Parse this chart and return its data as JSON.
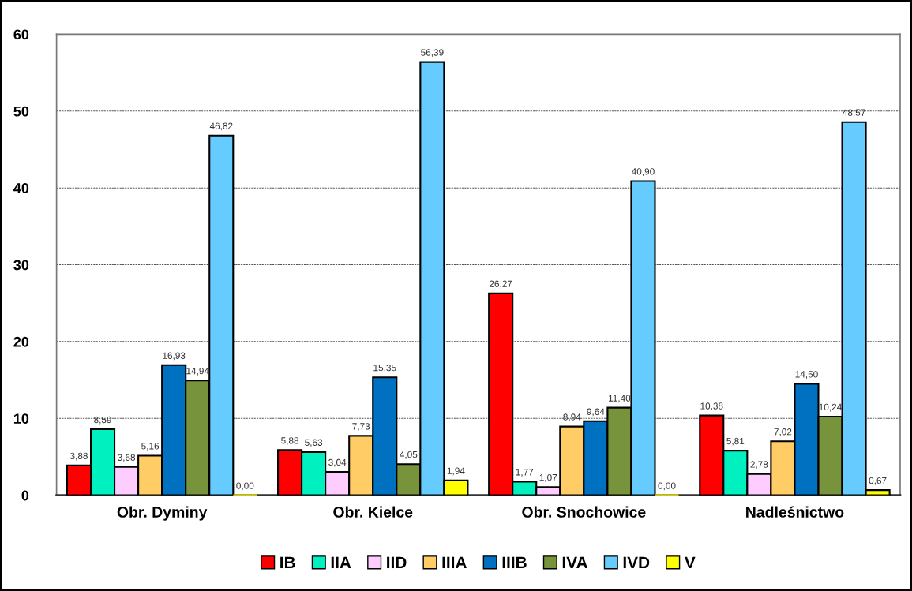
{
  "chart_data": {
    "type": "bar",
    "categories": [
      "Obr. Dyminy",
      "Obr. Kielce",
      "Obr. Snochowice",
      "Nadleśnictwo"
    ],
    "series": [
      {
        "name": "IB",
        "color": "#ff0000",
        "values": [
          3.88,
          5.88,
          26.27,
          10.38
        ],
        "value_labels": [
          "3,88",
          "5,88",
          "26,27",
          "10,38"
        ]
      },
      {
        "name": "IIA",
        "color": "#00f0c0",
        "values": [
          8.59,
          5.63,
          1.77,
          5.81
        ],
        "value_labels": [
          "8,59",
          "5,63",
          "1,77",
          "5,81"
        ]
      },
      {
        "name": "IID",
        "color": "#ffccff",
        "values": [
          3.68,
          3.04,
          1.07,
          2.78
        ],
        "value_labels": [
          "3,68",
          "3,04",
          "1,07",
          "2,78"
        ]
      },
      {
        "name": "IIIA",
        "color": "#ffcc66",
        "values": [
          5.16,
          7.73,
          8.94,
          7.02
        ],
        "value_labels": [
          "5,16",
          "7,73",
          "8,94",
          "7,02"
        ]
      },
      {
        "name": "IIIB",
        "color": "#0070c0",
        "values": [
          16.93,
          15.35,
          9.64,
          14.5
        ],
        "value_labels": [
          "16,93",
          "15,35",
          "9,64",
          "14,50"
        ]
      },
      {
        "name": "IVA",
        "color": "#77933c",
        "values": [
          14.94,
          4.05,
          11.4,
          10.24
        ],
        "value_labels": [
          "14,94",
          "4,05",
          "11,40",
          "10,24"
        ]
      },
      {
        "name": "IVD",
        "color": "#66ccff",
        "values": [
          46.82,
          56.39,
          40.9,
          48.57
        ],
        "value_labels": [
          "46,82",
          "56,39",
          "40,90",
          "48,57"
        ]
      },
      {
        "name": "V",
        "color": "#ffff00",
        "values": [
          0,
          1.94,
          0,
          0.67
        ],
        "value_labels": [
          "0,00",
          "1,94",
          "0,00",
          "0,67"
        ]
      }
    ],
    "ylim": [
      0,
      60
    ],
    "yticks": [
      0,
      10,
      20,
      30,
      40,
      50,
      60
    ],
    "grid": "y",
    "legend": "bottom"
  }
}
